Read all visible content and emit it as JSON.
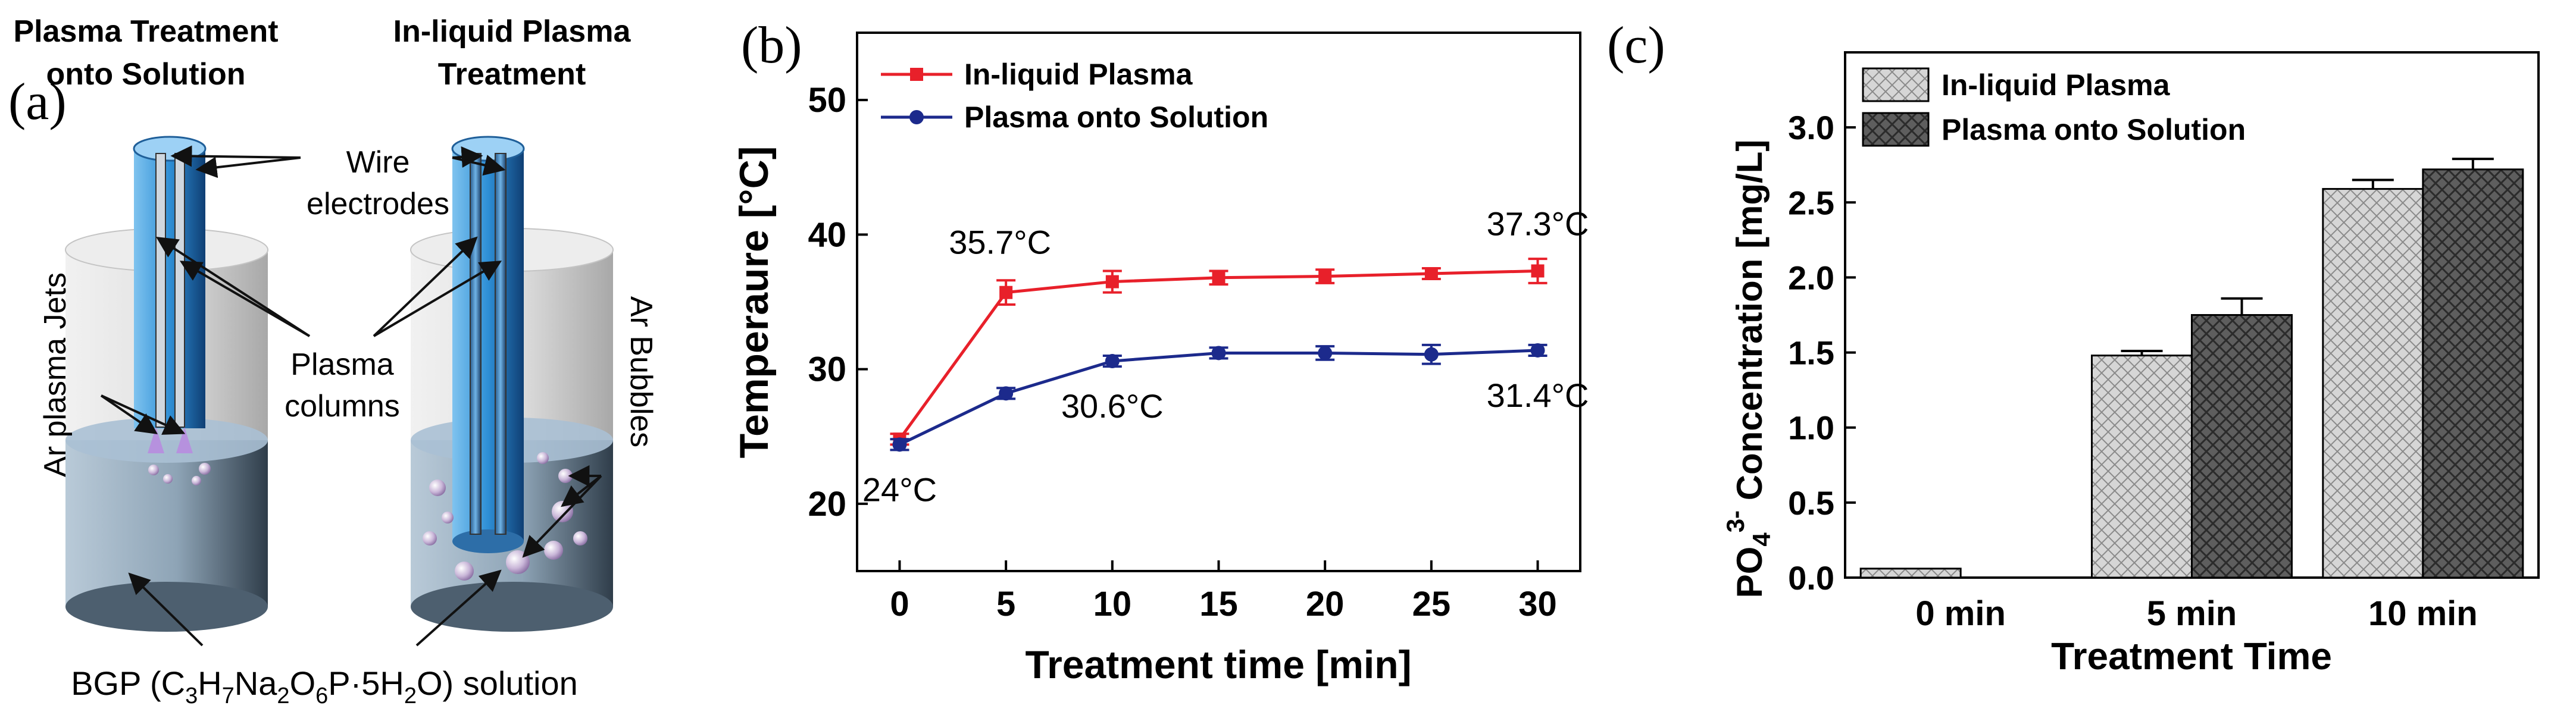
{
  "panel_a": {
    "label": "(a)",
    "title_left": [
      "Plasma Treatment",
      "onto Solution"
    ],
    "title_right": [
      "In-liquid Plasma",
      "Treatment"
    ],
    "annotations": {
      "wire": "Wire",
      "electrodes": "electrodes",
      "plasma": "Plasma",
      "columns": "columns",
      "ar_jets": "Ar plasma Jets",
      "ar_bubbles": "Ar Bubbles"
    },
    "solution_label": {
      "prefix": "BGP (C",
      "s1": "3",
      "p1": "H",
      "s2": "7",
      "p2": "Na",
      "s3": "2",
      "p3": "O",
      "s4": "6",
      "p4": "P·5H",
      "s5": "2",
      "p5": "O) solution"
    }
  },
  "chart_data": [
    {
      "panel": "(b)",
      "type": "line",
      "xlabel": "Treatment time [min]",
      "ylabel": "Temperaure [°C]",
      "x": [
        0,
        5,
        10,
        15,
        20,
        25,
        30
      ],
      "xlim": [
        -2,
        32
      ],
      "ylim": [
        15,
        55
      ],
      "xticks": [
        0,
        5,
        10,
        15,
        20,
        25,
        30
      ],
      "yticks": [
        20,
        30,
        40,
        50
      ],
      "series": [
        {
          "name": "In-liquid Plasma",
          "color": "#e8202a",
          "marker": "square",
          "values": [
            24.8,
            35.7,
            36.5,
            36.8,
            36.9,
            37.1,
            37.3
          ],
          "errors": [
            0.4,
            0.9,
            0.8,
            0.5,
            0.5,
            0.4,
            0.9
          ]
        },
        {
          "name": "Plasma onto Solution",
          "color": "#1c2a8c",
          "marker": "circle",
          "values": [
            24.4,
            28.2,
            30.6,
            31.2,
            31.2,
            31.1,
            31.4
          ],
          "errors": [
            0.4,
            0.4,
            0.4,
            0.4,
            0.5,
            0.7,
            0.4
          ]
        }
      ],
      "point_labels": [
        {
          "text": "35.7°C",
          "series": 0,
          "index": 1,
          "anchor": "above-left"
        },
        {
          "text": "37.3°C",
          "series": 0,
          "index": 6,
          "anchor": "above"
        },
        {
          "text": "30.6°C",
          "series": 1,
          "index": 2,
          "anchor": "below"
        },
        {
          "text": "31.4°C",
          "series": 1,
          "index": 6,
          "anchor": "below"
        },
        {
          "text": "24°C",
          "series": 1,
          "index": 0,
          "anchor": "below"
        }
      ],
      "legend_position": "top-left"
    },
    {
      "panel": "(c)",
      "type": "bar",
      "xlabel": "Treatment Time",
      "ylabel": {
        "prefix": "PO",
        "sub": "4",
        "sup": "3-",
        "rest": " Concentration [mg/L]"
      },
      "categories": [
        "0 min",
        "5 min",
        "10 min"
      ],
      "ylim": [
        0,
        3.5
      ],
      "yticks": [
        0.0,
        0.5,
        1.0,
        1.5,
        2.0,
        2.5,
        3.0
      ],
      "ytick_labels": [
        "0.0",
        "0.5",
        "1.0",
        "1.5",
        "2.0",
        "2.5",
        "3.0"
      ],
      "series": [
        {
          "name": "In-liquid Plasma",
          "fill": "#d2d2d2",
          "values": [
            0.06,
            1.48,
            2.59
          ],
          "errors": [
            0.0,
            0.03,
            0.06
          ]
        },
        {
          "name": "Plasma onto Solution",
          "fill": "#6e6e6e",
          "values": [
            null,
            1.75,
            2.72
          ],
          "errors": [
            null,
            0.11,
            0.07
          ]
        }
      ],
      "legend_position": "top-left"
    }
  ]
}
